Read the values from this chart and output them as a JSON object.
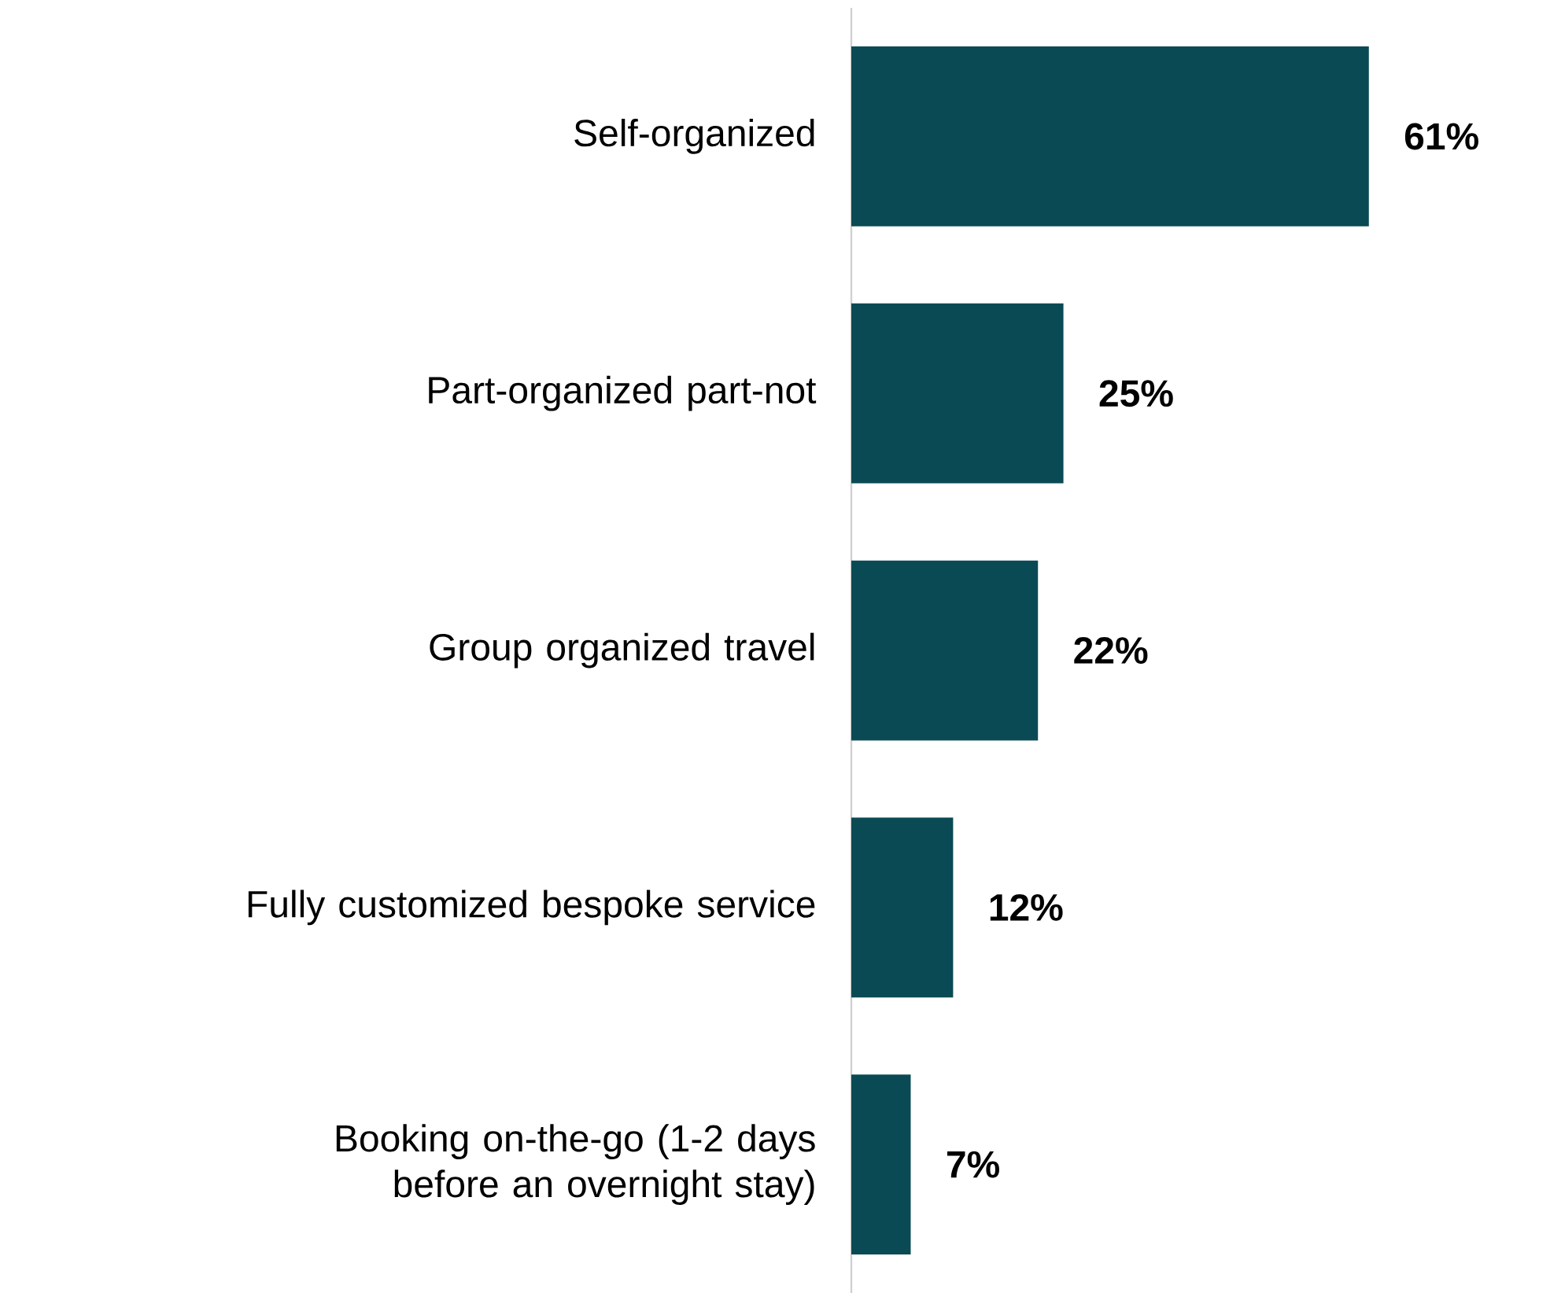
{
  "chart_data": {
    "type": "bar",
    "orientation": "horizontal",
    "categories": [
      "Self-organized",
      "Part-organized part-not",
      "Group organized travel",
      "Fully customized bespoke service",
      "Booking on-the-go (1-2 days before an overnight stay)"
    ],
    "values": [
      61,
      25,
      22,
      12,
      7
    ],
    "value_labels": [
      "61%",
      "25%",
      "22%",
      "12%",
      "7%"
    ],
    "color": "#0a4a54"
  }
}
